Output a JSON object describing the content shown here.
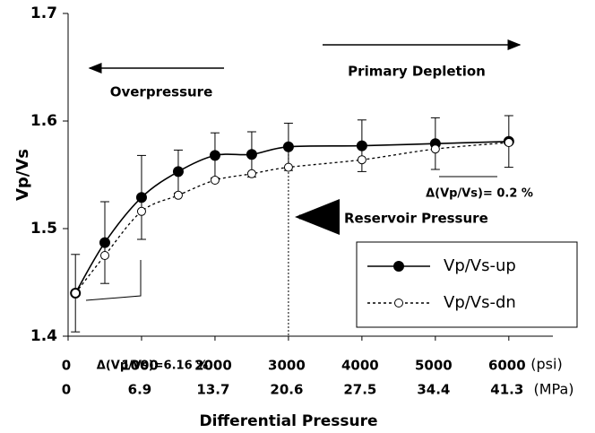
{
  "chart_data": {
    "type": "line",
    "y_label": "Vp/Vs",
    "x_label": "Differential Pressure",
    "x_unit": "(psi)",
    "x2_unit": "(MPa)",
    "x": [
      100,
      500,
      1000,
      1500,
      2000,
      2500,
      3000,
      4000,
      5000,
      6000
    ],
    "series": [
      {
        "name": "Vp/Vs-up",
        "color": "#000000",
        "marker": "filled",
        "line": "solid",
        "values": [
          1.44,
          1.487,
          1.529,
          1.553,
          1.568,
          1.569,
          1.576,
          1.577,
          1.579,
          1.581
        ],
        "errors": [
          0.036,
          0.038,
          0.039,
          0.02,
          0.021,
          0.021,
          0.022,
          0.024,
          0.024,
          0.024
        ]
      },
      {
        "name": "Vp/Vs-dn",
        "color": "#000000",
        "marker": "open",
        "line": "dotted",
        "values": [
          1.44,
          1.475,
          1.516,
          1.531,
          1.545,
          1.551,
          1.557,
          1.564,
          1.574,
          1.58
        ]
      }
    ],
    "xlim": [
      0,
      6600
    ],
    "xticks": [
      0,
      1000,
      2000,
      3000,
      4000,
      5000,
      6000
    ],
    "x2tick_labels": [
      "0",
      "6.9",
      "13.7",
      "20.6",
      "27.5",
      "34.4",
      "41.3"
    ],
    "ylim": [
      1.4,
      1.7
    ],
    "yticks": [
      {
        "value": 1.4,
        "label": "1.4"
      },
      {
        "value": 1.5,
        "label": "1.5"
      },
      {
        "value": 1.6,
        "label": "1.6"
      },
      {
        "value": 1.7,
        "label": "1.7"
      }
    ],
    "reference_line_x": 3000,
    "annotations": [
      "Overpressure",
      "Primary Depletion",
      "Reservoir Pressure",
      "Δ(Vp/Vs)=6.16 %",
      "Δ(Vp/Vs)= 0.2 %"
    ]
  }
}
